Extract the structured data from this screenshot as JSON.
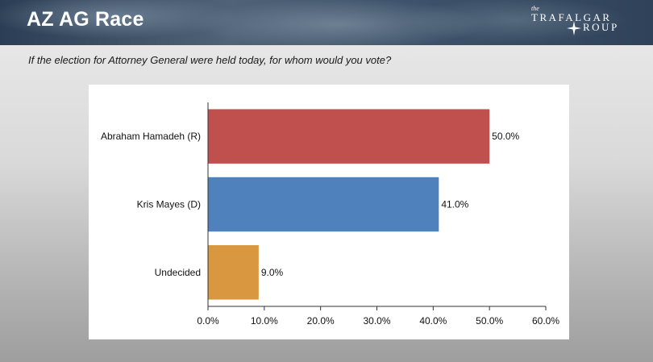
{
  "header": {
    "title": "AZ AG Race",
    "logo": {
      "the": "the",
      "line1": "TRAFALGAR",
      "line2": "ROUP"
    }
  },
  "question": "If the election for Attorney General were held today, for whom would you vote?",
  "chart_data": {
    "type": "bar",
    "orientation": "horizontal",
    "title": "",
    "xlabel": "",
    "ylabel": "",
    "categories": [
      "Abraham Hamadeh (R)",
      "Kris Mayes (D)",
      "Undecided"
    ],
    "values": [
      50.0,
      41.0,
      9.0
    ],
    "value_labels": [
      "50.0%",
      "41.0%",
      "9.0%"
    ],
    "colors": [
      "#c0504d",
      "#4f81bd",
      "#d9983f"
    ],
    "xlim": [
      0,
      60
    ],
    "x_ticks": [
      0,
      10,
      20,
      30,
      40,
      50,
      60
    ],
    "x_tick_labels": [
      "0.0%",
      "10.0%",
      "20.0%",
      "30.0%",
      "40.0%",
      "50.0%",
      "60.0%"
    ],
    "grid": false,
    "legend": "none"
  }
}
